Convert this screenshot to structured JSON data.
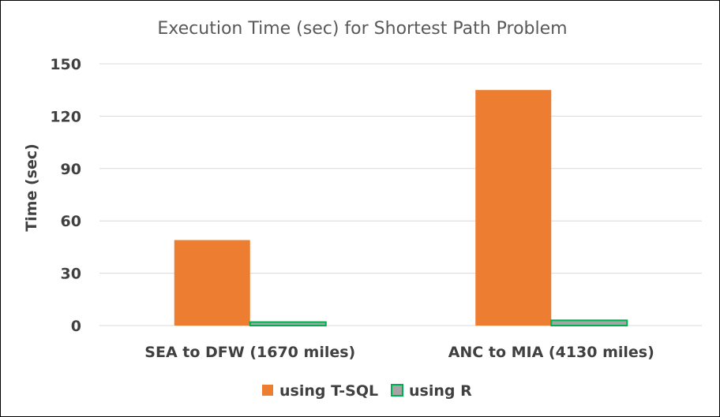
{
  "chart_data": {
    "type": "bar",
    "title": "Execution Time (sec) for Shortest Path Problem",
    "xlabel": "",
    "ylabel": "Time (sec)",
    "ylim": [
      0,
      150
    ],
    "yticks": [
      0,
      30,
      60,
      90,
      120,
      150
    ],
    "grid": true,
    "legend_position": "bottom",
    "categories": [
      "SEA to DFW (1670 miles)",
      "ANC to MIA (4130 miles)"
    ],
    "series": [
      {
        "name": "using T-SQL",
        "values": [
          49,
          135
        ],
        "color": "#ED7D31",
        "border": "#ED7D31"
      },
      {
        "name": "using R",
        "values": [
          2,
          3
        ],
        "color": "#A5A5A5",
        "border": "#00B050"
      }
    ]
  }
}
